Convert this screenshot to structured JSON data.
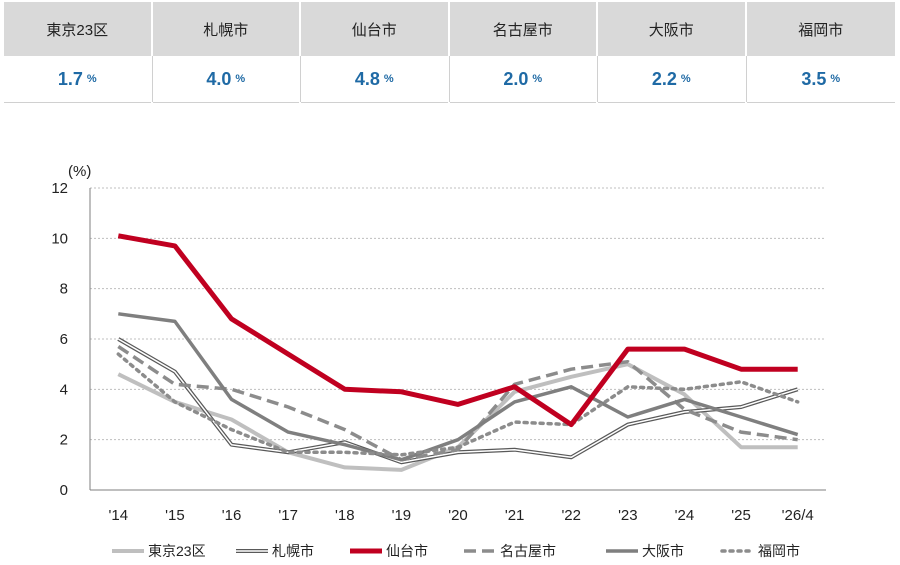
{
  "summary": [
    {
      "city": "東京23区",
      "value": "1.7",
      "unit": "%"
    },
    {
      "city": "札幌市",
      "value": "4.0",
      "unit": "%"
    },
    {
      "city": "仙台市",
      "value": "4.8",
      "unit": "%"
    },
    {
      "city": "名古屋市",
      "value": "2.0",
      "unit": "%"
    },
    {
      "city": "大阪市",
      "value": "2.2",
      "unit": "%"
    },
    {
      "city": "福岡市",
      "value": "3.5",
      "unit": "%"
    }
  ],
  "chart_data": {
    "type": "line",
    "y_unit_label": "(%)",
    "categories": [
      "'14",
      "'15",
      "'16",
      "'17",
      "'18",
      "'19",
      "'20",
      "'21",
      "'22",
      "'23",
      "'24",
      "'25",
      "'26/4"
    ],
    "ylim": [
      0,
      12
    ],
    "yticks": [
      0,
      2,
      4,
      6,
      8,
      10,
      12
    ],
    "grid": true,
    "legend_position": "bottom",
    "series": [
      {
        "name": "東京23区",
        "color": "#bfbfbf",
        "style": "solid",
        "values": [
          4.6,
          3.5,
          2.8,
          1.5,
          0.9,
          0.8,
          1.7,
          3.9,
          4.5,
          5.0,
          3.8,
          1.7,
          1.7
        ]
      },
      {
        "name": "札幌市",
        "color": "#595959",
        "style": "double",
        "values": [
          6.0,
          4.7,
          1.8,
          1.5,
          1.9,
          1.1,
          1.5,
          1.6,
          1.3,
          2.6,
          3.1,
          3.3,
          4.0
        ]
      },
      {
        "name": "仙台市",
        "color": "#c00020",
        "style": "thick",
        "values": [
          10.1,
          9.7,
          6.8,
          5.4,
          4.0,
          3.9,
          3.4,
          4.1,
          2.6,
          5.6,
          5.6,
          4.8,
          4.8
        ]
      },
      {
        "name": "名古屋市",
        "color": "#8c8c8c",
        "style": "dashed",
        "values": [
          5.7,
          4.2,
          4.0,
          3.3,
          2.4,
          1.2,
          1.6,
          4.2,
          4.8,
          5.1,
          3.2,
          2.3,
          2.0
        ]
      },
      {
        "name": "大阪市",
        "color": "#7f7f7f",
        "style": "solid-medium",
        "values": [
          7.0,
          6.7,
          3.6,
          2.3,
          1.8,
          1.2,
          2.0,
          3.5,
          4.1,
          2.9,
          3.6,
          2.9,
          2.2
        ]
      },
      {
        "name": "福岡市",
        "color": "#8c8c8c",
        "style": "dotted",
        "values": [
          5.4,
          3.5,
          2.4,
          1.5,
          1.5,
          1.4,
          1.7,
          2.7,
          2.6,
          4.1,
          4.0,
          4.3,
          3.5
        ]
      }
    ]
  }
}
